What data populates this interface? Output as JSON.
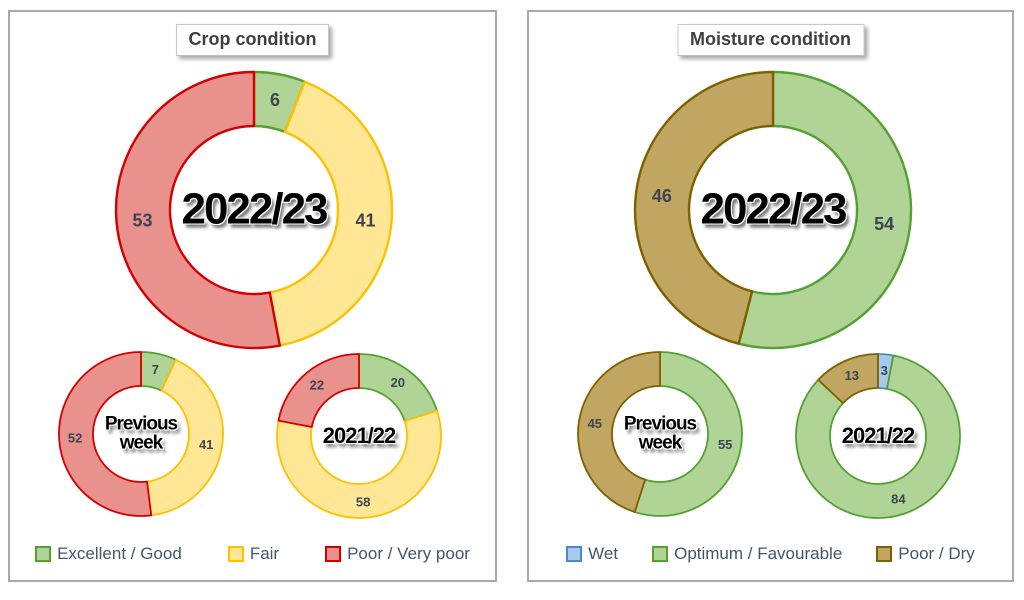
{
  "panels": [
    {
      "title": "Crop condition",
      "legend": [
        {
          "label": "Excellent / Good",
          "fill": "#AFD495",
          "border": "#54A033"
        },
        {
          "label": "Fair",
          "fill": "#FFE795",
          "border": "#FFC000"
        },
        {
          "label": "Poor / Very poor",
          "fill": "#E8918D",
          "border": "#D40000"
        }
      ],
      "donuts": [
        {
          "name": "2022-23",
          "center": [
            "2022/23"
          ],
          "slices": [
            {
              "series": "Excellent / Good",
              "value": 6,
              "label": "6"
            },
            {
              "series": "Fair",
              "value": 41,
              "label": "41"
            },
            {
              "series": "Poor / Very poor",
              "value": 53,
              "label": "53"
            }
          ]
        },
        {
          "name": "previous-week",
          "center": [
            "Previous",
            "week"
          ],
          "slices": [
            {
              "series": "Excellent / Good",
              "value": 7,
              "label": "7"
            },
            {
              "series": "Fair",
              "value": 41,
              "label": "41"
            },
            {
              "series": "Poor / Very poor",
              "value": 52,
              "label": "52"
            }
          ]
        },
        {
          "name": "2021-22",
          "center": [
            "2021/22"
          ],
          "slices": [
            {
              "series": "Excellent / Good",
              "value": 20,
              "label": "20"
            },
            {
              "series": "Fair",
              "value": 58,
              "label": "58"
            },
            {
              "series": "Poor / Very poor",
              "value": 22,
              "label": "22"
            }
          ]
        }
      ]
    },
    {
      "title": "Moisture condition",
      "legend": [
        {
          "label": "Wet",
          "fill": "#A6C9EC",
          "border": "#4A89C8"
        },
        {
          "label": "Optimum / Favourable",
          "fill": "#AFD495",
          "border": "#54A033"
        },
        {
          "label": "Poor / Dry",
          "fill": "#C0A660",
          "border": "#7F6000"
        }
      ],
      "donuts": [
        {
          "name": "2022-23",
          "center": [
            "2022/23"
          ],
          "slices": [
            {
              "series": "Wet",
              "value": 0,
              "label": "-"
            },
            {
              "series": "Optimum / Favourable",
              "value": 54,
              "label": "54"
            },
            {
              "series": "Poor / Dry",
              "value": 46,
              "label": "46"
            }
          ]
        },
        {
          "name": "previous-week",
          "center": [
            "Previous",
            "week"
          ],
          "slices": [
            {
              "series": "Wet",
              "value": 0,
              "label": "-"
            },
            {
              "series": "Optimum / Favourable",
              "value": 55,
              "label": "55"
            },
            {
              "series": "Poor / Dry",
              "value": 45,
              "label": "45"
            }
          ]
        },
        {
          "name": "2021-22",
          "center": [
            "2021/22"
          ],
          "slices": [
            {
              "series": "Wet",
              "value": 3,
              "label": "3"
            },
            {
              "series": "Optimum / Favourable",
              "value": 84,
              "label": "84"
            },
            {
              "series": "Poor / Dry",
              "value": 13,
              "label": "13"
            }
          ]
        }
      ]
    }
  ],
  "label_text_color": "#3E4453",
  "chart_data": [
    {
      "type": "pie",
      "subtype": "donut",
      "panel": "Crop condition",
      "title": "2022/23",
      "categories": [
        "Excellent / Good",
        "Fair",
        "Poor / Very poor"
      ],
      "values": [
        6,
        41,
        53
      ],
      "colors": [
        "#AFD495",
        "#FFE795",
        "#E8918D"
      ],
      "legend_position": "bottom"
    },
    {
      "type": "pie",
      "subtype": "donut",
      "panel": "Crop condition",
      "title": "Previous week",
      "categories": [
        "Excellent / Good",
        "Fair",
        "Poor / Very poor"
      ],
      "values": [
        7,
        41,
        52
      ],
      "colors": [
        "#AFD495",
        "#FFE795",
        "#E8918D"
      ],
      "legend_position": "bottom"
    },
    {
      "type": "pie",
      "subtype": "donut",
      "panel": "Crop condition",
      "title": "2021/22",
      "categories": [
        "Excellent / Good",
        "Fair",
        "Poor / Very poor"
      ],
      "values": [
        20,
        58,
        22
      ],
      "colors": [
        "#AFD495",
        "#FFE795",
        "#E8918D"
      ],
      "legend_position": "bottom"
    },
    {
      "type": "pie",
      "subtype": "donut",
      "panel": "Moisture condition",
      "title": "2022/23",
      "categories": [
        "Wet",
        "Optimum / Favourable",
        "Poor / Dry"
      ],
      "values": [
        0,
        54,
        46
      ],
      "colors": [
        "#A6C9EC",
        "#AFD495",
        "#C0A660"
      ],
      "legend_position": "bottom"
    },
    {
      "type": "pie",
      "subtype": "donut",
      "panel": "Moisture condition",
      "title": "Previous week",
      "categories": [
        "Wet",
        "Optimum / Favourable",
        "Poor / Dry"
      ],
      "values": [
        0,
        55,
        45
      ],
      "colors": [
        "#A6C9EC",
        "#AFD495",
        "#C0A660"
      ],
      "legend_position": "bottom"
    },
    {
      "type": "pie",
      "subtype": "donut",
      "panel": "Moisture condition",
      "title": "2021/22",
      "categories": [
        "Wet",
        "Optimum / Favourable",
        "Poor / Dry"
      ],
      "values": [
        3,
        84,
        13
      ],
      "colors": [
        "#A6C9EC",
        "#AFD495",
        "#C0A660"
      ],
      "legend_position": "bottom"
    }
  ]
}
